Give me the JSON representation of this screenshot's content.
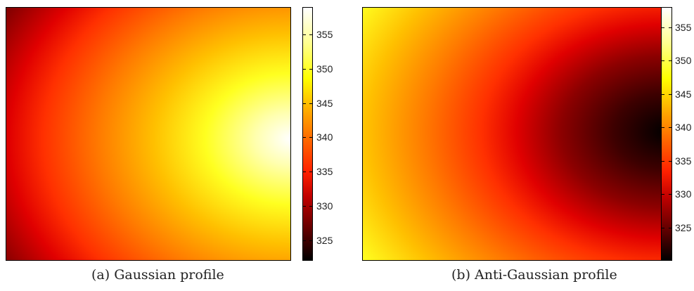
{
  "chart_data": [
    {
      "type": "heatmap",
      "caption": "(a) Gaussian profile",
      "profile": "gaussian",
      "peak_location": "right-center",
      "colormap": "hot",
      "colorbar": {
        "range": [
          322,
          359
        ],
        "ticks": [
          "325",
          "330",
          "335",
          "340",
          "345",
          "350",
          "355"
        ]
      }
    },
    {
      "type": "heatmap",
      "caption": "(b) Anti-Gaussian profile",
      "profile": "anti-gaussian",
      "trough_location": "right-center",
      "colormap": "hot",
      "colorbar": {
        "range": [
          320,
          358
        ],
        "ticks": [
          "325",
          "330",
          "335",
          "340",
          "345",
          "350",
          "355"
        ]
      }
    }
  ]
}
